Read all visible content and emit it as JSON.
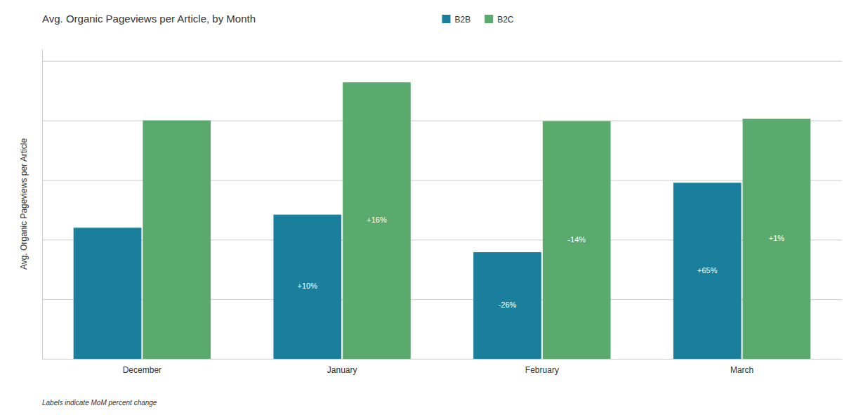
{
  "chart_data": {
    "type": "bar",
    "title": "Avg. Organic Pageviews per Article, by Month",
    "ylabel": "Avg. Organic Pageviews per Article",
    "categories": [
      "December",
      "January",
      "February",
      "March"
    ],
    "series": [
      {
        "name": "B2B",
        "color": "#1a7f9c",
        "values": [
          440,
          484,
          358,
          591
        ],
        "annotations": [
          null,
          "+10%",
          "-26%",
          "+65%"
        ]
      },
      {
        "name": "B2C",
        "color": "#5aaa6e",
        "values": [
          800,
          928,
          798,
          806
        ],
        "annotations": [
          null,
          "+16%",
          "-14%",
          "+1%"
        ]
      }
    ],
    "ylim": [
      0,
      1039.36
    ],
    "yticks": [
      0,
      200,
      400,
      600,
      800,
      1000
    ],
    "grid": true,
    "legend": "top",
    "tick_labels": "x",
    "annotations": [
      "Labels indicate MoM percent change"
    ]
  }
}
